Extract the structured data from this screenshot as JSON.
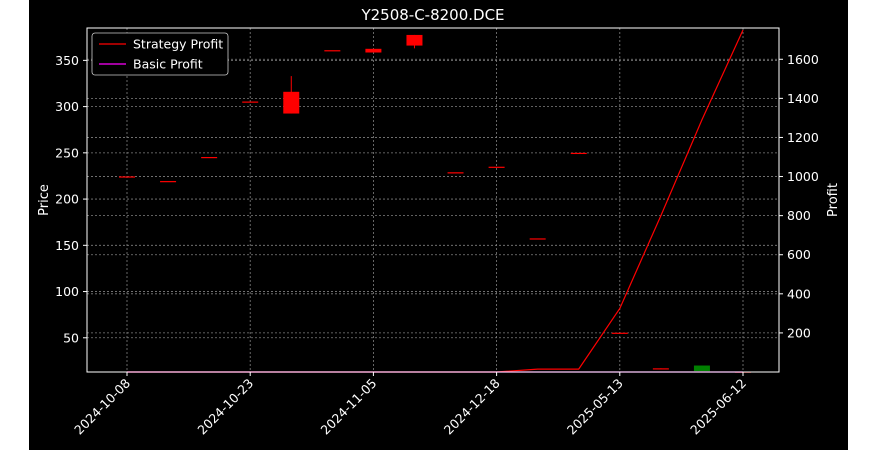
{
  "chart_data": {
    "type": "candlestick+line",
    "title": "Y2508-C-8200.DCE",
    "ylabel_left": "Price",
    "ylabel_right": "Profit",
    "ylim_left": [
      13,
      385
    ],
    "ylim_right": [
      0,
      1760
    ],
    "yticks_left": [
      50,
      100,
      150,
      200,
      250,
      300,
      350
    ],
    "yticks_right": [
      200,
      400,
      600,
      800,
      1000,
      1200,
      1400,
      1600
    ],
    "xticks": [
      {
        "label": "2024-10-08",
        "index": 0
      },
      {
        "label": "2024-10-23",
        "index": 3
      },
      {
        "label": "2024-11-05",
        "index": 6
      },
      {
        "label": "2024-12-18",
        "index": 9
      },
      {
        "label": "2025-05-13",
        "index": 12
      },
      {
        "label": "2025-06-12",
        "index": 15
      }
    ],
    "grid": true,
    "legend_position": "top-left",
    "colors": {
      "up": "#008000",
      "down": "#ff0000",
      "strategy": "#ff0000",
      "basic": "#ff00ff",
      "background": "#000000",
      "grid": "#808080"
    },
    "candles": [
      {
        "index": 0,
        "open": 224.5,
        "close": 224.5,
        "high": 224.5,
        "low": 224.5
      },
      {
        "index": 1,
        "open": 219.5,
        "close": 219.5,
        "high": 219.5,
        "low": 219.5
      },
      {
        "index": 2,
        "open": 245.5,
        "close": 245.5,
        "high": 245.5,
        "low": 245.5
      },
      {
        "index": 3,
        "open": 305.5,
        "close": 305.5,
        "high": 305.5,
        "low": 305.5
      },
      {
        "index": 4,
        "open": 316,
        "close": 292.5,
        "high": 333,
        "low": 292.5
      },
      {
        "index": 5,
        "open": 361,
        "close": 361,
        "high": 361,
        "low": 361
      },
      {
        "index": 6,
        "open": 362.5,
        "close": 358.5,
        "high": 362.5,
        "low": 358.5
      },
      {
        "index": 7,
        "open": 377.5,
        "close": 366,
        "high": 377.5,
        "low": 363
      },
      {
        "index": 8,
        "open": 229,
        "close": 229,
        "high": 229,
        "low": 229
      },
      {
        "index": 9,
        "open": 235,
        "close": 235,
        "high": 235,
        "low": 235
      },
      {
        "index": 10,
        "open": 157.5,
        "close": 157.5,
        "high": 157.5,
        "low": 157.5
      },
      {
        "index": 11,
        "open": 250,
        "close": 250,
        "high": 250,
        "low": 250
      },
      {
        "index": 12,
        "open": 55.5,
        "close": 55.5,
        "high": 55.5,
        "low": 55.5
      },
      {
        "index": 13,
        "open": 17,
        "close": 16,
        "high": 17,
        "low": 16
      },
      {
        "index": 14,
        "open": 14,
        "close": 20,
        "high": 20,
        "low": 14
      },
      {
        "index": 15,
        "open": 13.5,
        "close": 13.5,
        "high": 13.5,
        "low": 13.5
      }
    ],
    "series": [
      {
        "name": "Strategy Profit",
        "color": "#ff0000",
        "x": [
          0,
          1,
          2,
          3,
          4,
          5,
          6,
          7,
          8,
          9,
          10,
          11,
          12,
          13,
          14,
          15
        ],
        "values": [
          0,
          0,
          0,
          0,
          0,
          0,
          0,
          0,
          0,
          0,
          15,
          15,
          325,
          800,
          1290,
          1750
        ]
      },
      {
        "name": "Basic Profit",
        "color": "#ff00ff",
        "x": [
          0,
          1,
          2,
          3,
          4,
          5,
          6,
          7,
          8,
          9,
          10,
          11,
          12,
          13,
          14,
          15
        ],
        "values": [
          0,
          0,
          0,
          0,
          0,
          0,
          0,
          0,
          0,
          0,
          0,
          0,
          0,
          0,
          0,
          0
        ]
      }
    ]
  }
}
